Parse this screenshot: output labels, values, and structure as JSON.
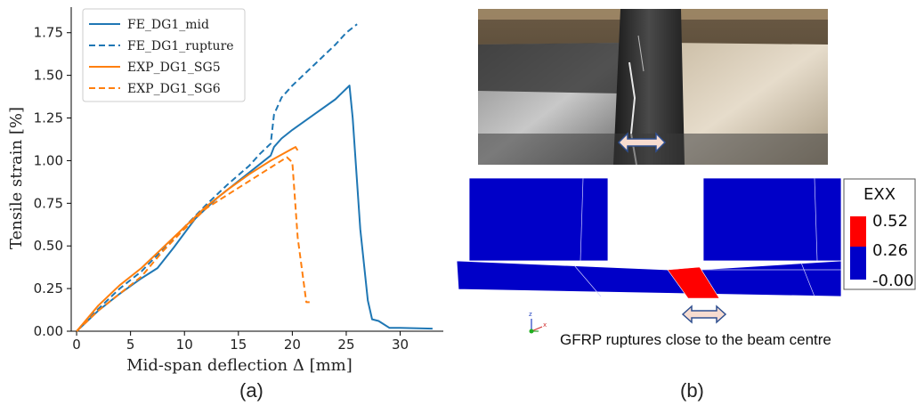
{
  "panel_a_label": "(a)",
  "panel_b_label": "(b)",
  "fe_caption": "GFRP ruptures close to the beam centre",
  "contour_legend": {
    "title": "EXX",
    "values": [
      "0.52",
      "0.26",
      "-0.00"
    ],
    "colors": [
      "#ff0000",
      "#0000c8"
    ]
  },
  "colors": {
    "fe": "#1f77b4",
    "exp": "#ff7f0e"
  },
  "chart_data": {
    "type": "line",
    "title": "",
    "xlabel": "Mid-span deflection Δ [mm]",
    "ylabel": "Tensile strain [%]",
    "xlim": [
      -0.5,
      34
    ],
    "ylim": [
      0,
      1.9
    ],
    "xticks": [
      0,
      5,
      10,
      15,
      20,
      25,
      30
    ],
    "yticks": [
      0.0,
      0.25,
      0.5,
      0.75,
      1.0,
      1.25,
      1.5,
      1.75
    ],
    "xtick_labels": [
      "0",
      "5",
      "10",
      "15",
      "20",
      "25",
      "30"
    ],
    "ytick_labels": [
      "0.00",
      "0.25",
      "0.50",
      "0.75",
      "1.00",
      "1.25",
      "1.50",
      "1.75"
    ],
    "grid": false,
    "legend_position": "top-left",
    "series": [
      {
        "name": "FE_DG1_mid",
        "style": "solid",
        "color": "#1f77b4",
        "x": [
          0,
          2,
          4,
          6,
          7.5,
          9,
          11,
          13,
          15,
          17,
          18,
          18.3,
          19,
          20,
          22,
          24,
          25.3,
          25.6,
          26.3,
          27,
          27.4,
          28,
          29,
          30,
          33
        ],
        "y": [
          0,
          0.12,
          0.22,
          0.31,
          0.37,
          0.49,
          0.66,
          0.78,
          0.88,
          0.98,
          1.03,
          1.08,
          1.13,
          1.18,
          1.27,
          1.36,
          1.44,
          1.25,
          0.6,
          0.18,
          0.07,
          0.06,
          0.02,
          0.02,
          0.015
        ]
      },
      {
        "name": "FE_DG1_rupture",
        "style": "dashed",
        "color": "#1f77b4",
        "x": [
          0,
          2,
          4,
          6,
          8,
          10,
          12,
          14,
          16,
          17,
          18,
          18.3,
          19,
          20,
          21,
          22,
          23,
          24,
          25,
          26
        ],
        "y": [
          0,
          0.13,
          0.25,
          0.35,
          0.48,
          0.61,
          0.74,
          0.86,
          0.97,
          1.04,
          1.1,
          1.27,
          1.37,
          1.44,
          1.5,
          1.56,
          1.62,
          1.68,
          1.75,
          1.8
        ]
      },
      {
        "name": "EXP_DG1_SG5",
        "style": "solid",
        "color": "#ff7f0e",
        "x": [
          0,
          2,
          4,
          6,
          8,
          10,
          12,
          14,
          16,
          18,
          20,
          20.3,
          20.5
        ],
        "y": [
          0,
          0.15,
          0.27,
          0.37,
          0.49,
          0.61,
          0.73,
          0.83,
          0.92,
          1.0,
          1.07,
          1.08,
          1.06
        ]
      },
      {
        "name": "EXP_DG1_SG6",
        "style": "dashed",
        "color": "#ff7f0e",
        "x": [
          0,
          2,
          4,
          6,
          8,
          10,
          12,
          14,
          16,
          18,
          19.5,
          20,
          20.5,
          21.3,
          21.6
        ],
        "y": [
          0,
          0.12,
          0.22,
          0.32,
          0.47,
          0.6,
          0.72,
          0.8,
          0.88,
          0.96,
          1.02,
          0.99,
          0.55,
          0.17,
          0.17
        ]
      }
    ]
  }
}
